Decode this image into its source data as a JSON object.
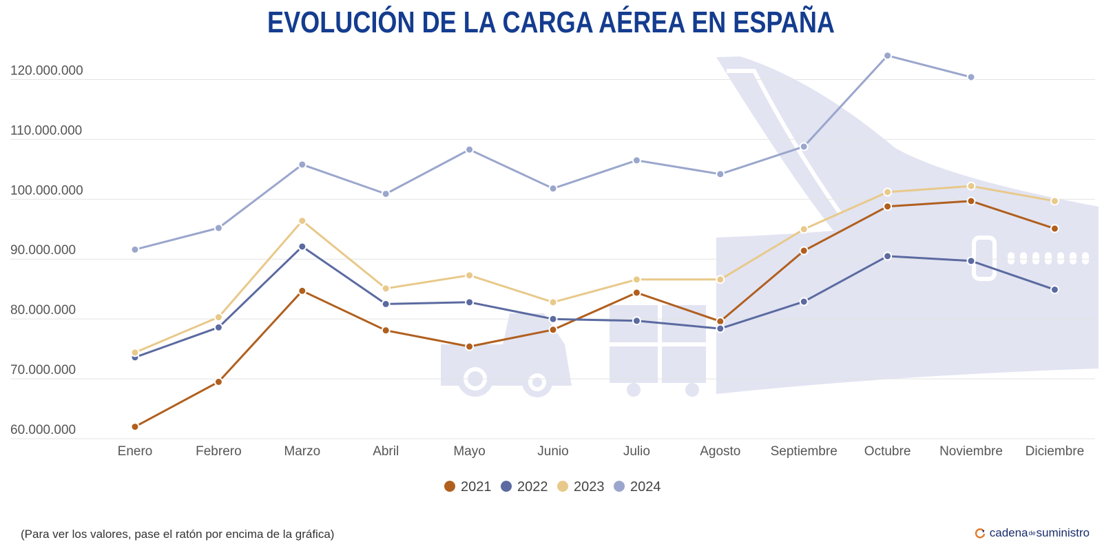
{
  "title": "EVOLUCIÓN DE LA CARGA AÉREA EN ESPAÑA",
  "footnote": "(Para ver los valores, pase el ratón por encima de la gráfica)",
  "brand": {
    "part1": "cadena",
    "part2": "de",
    "part3": "suministro"
  },
  "colors": {
    "2021": "#b05f1e",
    "2022": "#5b6aa0",
    "2023": "#e8c98a",
    "2024": "#9aa6cc",
    "grid": "#e3e3e3",
    "watermark": "#e2e4f2",
    "title": "#143c8f"
  },
  "chart_data": {
    "type": "line",
    "title": "EVOLUCIÓN DE LA CARGA AÉREA EN ESPAÑA",
    "xlabel": "",
    "ylabel": "",
    "categories": [
      "Enero",
      "Febrero",
      "Marzo",
      "Abril",
      "Mayo",
      "Junio",
      "Julio",
      "Agosto",
      "Septiembre",
      "Octubre",
      "Noviembre",
      "Diciembre"
    ],
    "ylim": [
      60000000,
      125000000
    ],
    "yticks": [
      60000000,
      70000000,
      80000000,
      90000000,
      100000000,
      110000000,
      120000000
    ],
    "ytick_labels": [
      "60.000.000",
      "70.000.000",
      "80.000.000",
      "90.000.000",
      "100.000.000",
      "110.000.000",
      "120.000.000"
    ],
    "grid": true,
    "legend_position": "bottom",
    "series": [
      {
        "name": "2021",
        "values": [
          62000000,
          69500000,
          84700000,
          78100000,
          75400000,
          78200000,
          84400000,
          79600000,
          91400000,
          98800000,
          99700000,
          95100000
        ]
      },
      {
        "name": "2022",
        "values": [
          73600000,
          78600000,
          92100000,
          82500000,
          82800000,
          80000000,
          79700000,
          78400000,
          82900000,
          90500000,
          89700000,
          84900000
        ]
      },
      {
        "name": "2023",
        "values": [
          74400000,
          80300000,
          96400000,
          85100000,
          87300000,
          82800000,
          86600000,
          86600000,
          95000000,
          101200000,
          102200000,
          99700000
        ]
      },
      {
        "name": "2024",
        "values": [
          91600000,
          95200000,
          105800000,
          100900000,
          108300000,
          101800000,
          106500000,
          104200000,
          108800000,
          124000000,
          120400000,
          null
        ]
      }
    ]
  }
}
